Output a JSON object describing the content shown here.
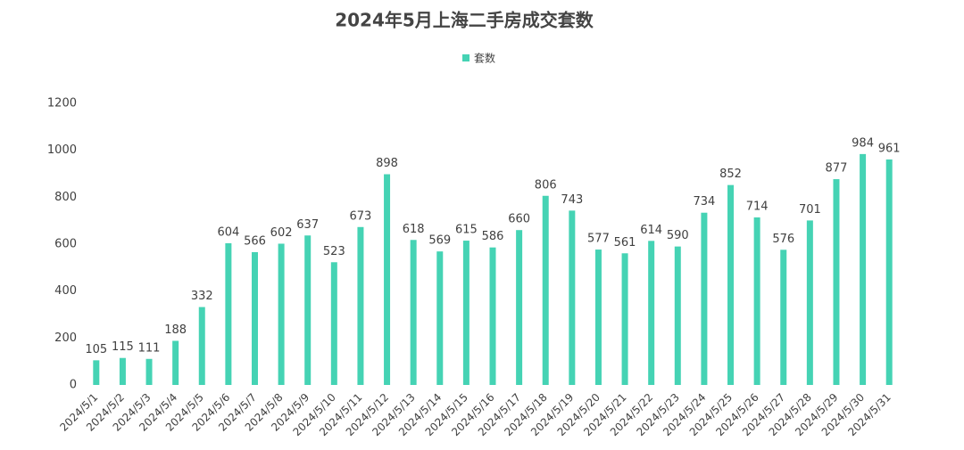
{
  "chart_data": {
    "type": "bar",
    "title": "2024年5月上海二手房成交套数",
    "series": [
      {
        "name": "套数",
        "color": "#45d3b4",
        "values": [
          105,
          115,
          111,
          188,
          332,
          604,
          566,
          602,
          637,
          523,
          673,
          898,
          618,
          569,
          615,
          586,
          660,
          806,
          743,
          577,
          561,
          614,
          590,
          734,
          852,
          714,
          576,
          701,
          877,
          984,
          961
        ]
      }
    ],
    "categories": [
      "2024/5/1",
      "2024/5/2",
      "2024/5/3",
      "2024/5/4",
      "2024/5/5",
      "2024/5/6",
      "2024/5/7",
      "2024/5/8",
      "2024/5/9",
      "2024/5/10",
      "2024/5/11",
      "2024/5/12",
      "2024/5/13",
      "2024/5/14",
      "2024/5/15",
      "2024/5/16",
      "2024/5/17",
      "2024/5/18",
      "2024/5/19",
      "2024/5/20",
      "2024/5/21",
      "2024/5/22",
      "2024/5/23",
      "2024/5/24",
      "2024/5/25",
      "2024/5/26",
      "2024/5/27",
      "2024/5/28",
      "2024/5/29",
      "2024/5/30",
      "2024/5/31"
    ],
    "ylim": [
      0,
      1200
    ],
    "yticks": [
      0,
      200,
      400,
      600,
      800,
      1000,
      1200
    ],
    "grid": false,
    "legend": "top"
  }
}
